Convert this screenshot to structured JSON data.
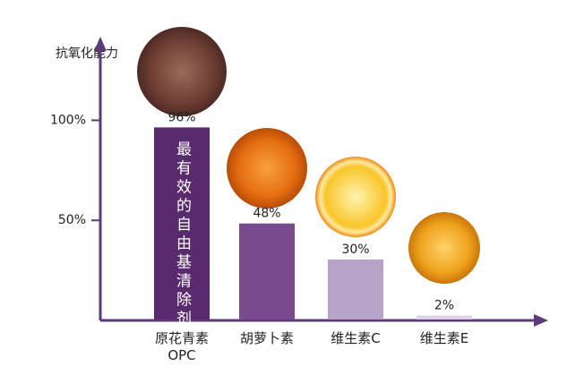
{
  "chart_data": {
    "type": "bar",
    "y_label": "抗氧化能力",
    "categories": [
      "原花青素\nOPC",
      "胡萝卜素",
      "维生素C",
      "维生素E"
    ],
    "values": [
      96,
      48,
      30,
      2
    ],
    "value_labels": [
      "96%",
      "48%",
      "30%",
      "2%"
    ],
    "colors": [
      "#5a2a6e",
      "#7a4a8e",
      "#b8a3c9",
      "#dcd1e6"
    ],
    "annotation": "最有效的自由基清除剂",
    "ylim": [
      0,
      140
    ],
    "yticks": [
      {
        "value": 50,
        "label": "50%"
      },
      {
        "value": 100,
        "label": "100%"
      }
    ],
    "axis_color": "#5c3a78"
  }
}
